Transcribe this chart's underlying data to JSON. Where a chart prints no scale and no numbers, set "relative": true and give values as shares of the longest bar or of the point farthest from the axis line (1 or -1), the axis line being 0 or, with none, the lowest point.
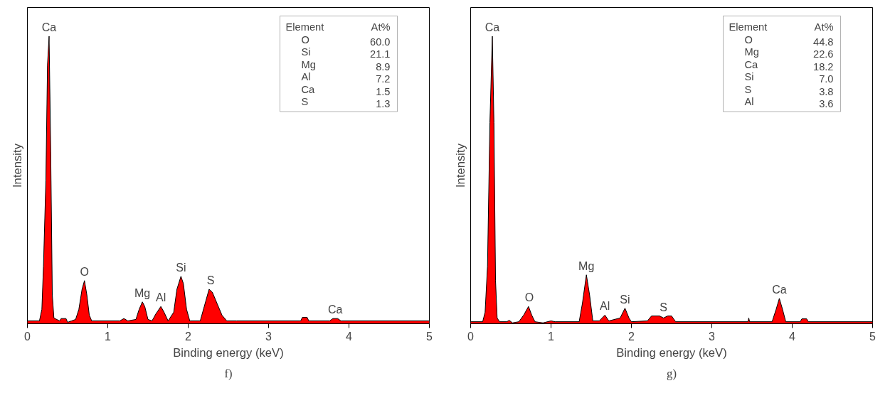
{
  "chart_data": [
    {
      "type": "area",
      "xlabel": "Binding energy (keV)",
      "ylabel": "Intensity",
      "relative": true,
      "grid": false,
      "tick_labels": "x",
      "xlim": [
        0,
        5
      ],
      "xticks": [
        0,
        1,
        2,
        3,
        4,
        5
      ],
      "series": [
        {
          "color": "#ff0000",
          "x": [
            0,
            0.15,
            0.18,
            0.2,
            0.23,
            0.25,
            0.27,
            0.29,
            0.31,
            0.33,
            0.4,
            0.42,
            0.48,
            0.5,
            0.55,
            0.6,
            0.64,
            0.68,
            0.71,
            0.74,
            0.77,
            0.8,
            1.15,
            1.2,
            1.25,
            1.35,
            1.39,
            1.43,
            1.46,
            1.5,
            1.55,
            1.6,
            1.66,
            1.7,
            1.75,
            1.82,
            1.86,
            1.91,
            1.94,
            1.98,
            2.02,
            2.15,
            2.2,
            2.26,
            2.3,
            2.36,
            2.42,
            2.48,
            2.6,
            3.4,
            3.42,
            3.48,
            3.5,
            3.76,
            3.8,
            3.86,
            3.9,
            5
          ],
          "values": [
            0.01,
            0.01,
            0.05,
            0.2,
            0.5,
            0.9,
            1.0,
            0.6,
            0.1,
            0.02,
            0.01,
            0.018,
            0.018,
            0.005,
            0.01,
            0.015,
            0.05,
            0.12,
            0.15,
            0.1,
            0.03,
            0.01,
            0.01,
            0.018,
            0.01,
            0.015,
            0.05,
            0.076,
            0.06,
            0.015,
            0.01,
            0.035,
            0.06,
            0.04,
            0.01,
            0.04,
            0.12,
            0.165,
            0.14,
            0.05,
            0.01,
            0.01,
            0.06,
            0.12,
            0.11,
            0.07,
            0.03,
            0.01,
            0.01,
            0.01,
            0.022,
            0.022,
            0.01,
            0.01,
            0.018,
            0.018,
            0.01,
            0.01
          ]
        }
      ],
      "annotations": [
        {
          "text": "Ca",
          "x": 0.27,
          "y": 1.0
        },
        {
          "text": "O",
          "x": 0.71,
          "y": 0.15
        },
        {
          "text": "Mg",
          "x": 1.43,
          "y": 0.076
        },
        {
          "text": "Al",
          "x": 1.66,
          "y": 0.06
        },
        {
          "text": "Si",
          "x": 1.91,
          "y": 0.165
        },
        {
          "text": "S",
          "x": 2.28,
          "y": 0.12
        },
        {
          "text": "Ca",
          "x": 3.83,
          "y": 0.018
        },
        "f)",
        "Element",
        "At%",
        "O",
        "60.0",
        "Si",
        "21.1",
        "Mg",
        "8.9",
        "Al",
        "7.2",
        "Ca",
        "1.5",
        "S",
        "1.3"
      ]
    },
    {
      "type": "area",
      "xlabel": "Binding energy (keV)",
      "ylabel": "Intensity",
      "relative": true,
      "grid": false,
      "tick_labels": "x",
      "xlim": [
        0,
        5
      ],
      "xticks": [
        0,
        1,
        2,
        3,
        4,
        5
      ],
      "series": [
        {
          "color": "#ff0000",
          "x": [
            0,
            0.15,
            0.18,
            0.21,
            0.24,
            0.27,
            0.29,
            0.31,
            0.33,
            0.36,
            0.45,
            0.48,
            0.52,
            0.6,
            0.66,
            0.72,
            0.76,
            0.8,
            0.9,
            1.0,
            1.05,
            1.35,
            1.39,
            1.44,
            1.48,
            1.52,
            1.6,
            1.67,
            1.72,
            1.86,
            1.92,
            1.97,
            2.0,
            2.2,
            2.25,
            2.35,
            2.4,
            2.45,
            2.5,
            2.55,
            3.45,
            3.46,
            3.47,
            3.75,
            3.8,
            3.84,
            3.88,
            3.92,
            4.1,
            4.12,
            4.18,
            4.2,
            5
          ],
          "values": [
            0.007,
            0.007,
            0.04,
            0.2,
            0.7,
            1.0,
            0.7,
            0.15,
            0.02,
            0.007,
            0.007,
            0.012,
            0.003,
            0.007,
            0.03,
            0.06,
            0.03,
            0.007,
            0.003,
            0.01,
            0.007,
            0.007,
            0.07,
            0.17,
            0.1,
            0.01,
            0.01,
            0.03,
            0.01,
            0.02,
            0.054,
            0.02,
            0.007,
            0.01,
            0.027,
            0.027,
            0.02,
            0.027,
            0.027,
            0.007,
            0.007,
            0.02,
            0.007,
            0.007,
            0.05,
            0.088,
            0.05,
            0.007,
            0.007,
            0.017,
            0.017,
            0.007,
            0.007
          ]
        }
      ],
      "annotations": [
        {
          "text": "Ca",
          "x": 0.27,
          "y": 1.0
        },
        {
          "text": "O",
          "x": 0.73,
          "y": 0.06
        },
        {
          "text": "Mg",
          "x": 1.44,
          "y": 0.17
        },
        {
          "text": "Al",
          "x": 1.67,
          "y": 0.03
        },
        {
          "text": "Si",
          "x": 1.92,
          "y": 0.054
        },
        {
          "text": "S",
          "x": 2.4,
          "y": 0.027
        },
        {
          "text": "Ca",
          "x": 3.84,
          "y": 0.088
        },
        "g)",
        "Element",
        "At%",
        "O",
        "44.8",
        "Mg",
        "22.6",
        "Ca",
        "18.2",
        "Si",
        "7.0",
        "S",
        "3.8",
        "Al",
        "3.6"
      ]
    }
  ]
}
